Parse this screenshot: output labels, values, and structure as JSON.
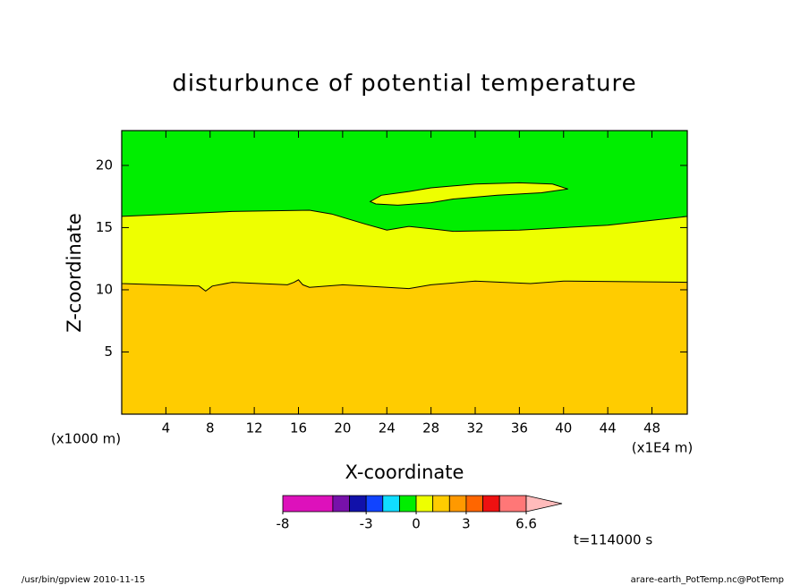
{
  "chart_data": {
    "type": "contour",
    "title": "disturbunce of potential temperature",
    "x_label": "X-coordinate",
    "y_label": "Z-coordinate",
    "x_unit": "(x1E4 m)",
    "y_unit": "(x1000 m)",
    "xlim": [
      0,
      51.2
    ],
    "ylim": [
      0,
      22.8
    ],
    "xticks": [
      4,
      8,
      12,
      16,
      20,
      24,
      28,
      32,
      36,
      40,
      44,
      48
    ],
    "yticks": [
      5,
      10,
      15,
      20
    ],
    "contours": [
      {
        "color": "#ffcc00",
        "x": [
          0,
          51.2,
          51.2,
          0
        ],
        "y": [
          0,
          0,
          22.8,
          22.8
        ]
      },
      {
        "color": "#eeff00",
        "x": [
          0,
          7,
          7.6,
          8.2,
          10,
          15,
          15.6,
          16,
          16.4,
          17,
          20,
          26,
          28,
          32,
          37,
          40,
          51.2,
          51.2,
          0
        ],
        "y": [
          10.5,
          10.3,
          9.9,
          10.3,
          10.6,
          10.4,
          10.6,
          10.8,
          10.4,
          10.2,
          10.4,
          10.1,
          10.4,
          10.7,
          10.5,
          10.7,
          10.6,
          22.8,
          22.8
        ]
      },
      {
        "color": "#00ee00",
        "x": [
          0,
          10,
          17,
          19,
          22,
          24,
          26,
          28,
          30,
          36,
          44,
          51.2,
          51.2,
          0
        ],
        "y": [
          15.9,
          16.3,
          16.4,
          16.1,
          15.3,
          14.8,
          15.1,
          14.9,
          14.7,
          14.8,
          15.2,
          15.9,
          22.8,
          22.8
        ]
      },
      {
        "color": "#eeff00",
        "x": [
          22.5,
          23.5,
          26,
          28,
          32,
          36,
          39,
          40.4,
          38,
          34,
          30,
          28,
          25,
          23
        ],
        "y": [
          17.1,
          17.6,
          17.9,
          18.2,
          18.5,
          18.6,
          18.5,
          18.1,
          17.8,
          17.6,
          17.3,
          17,
          16.8,
          16.9
        ]
      }
    ],
    "colorbar": {
      "bounds": [
        -8,
        -5,
        -4,
        -3,
        -2,
        -1,
        0,
        1,
        2,
        3,
        4,
        5,
        6.6
      ],
      "colors": [
        "#dd11bb",
        "#7711aa",
        "#1111aa",
        "#1144ff",
        "#11ddff",
        "#00ee00",
        "#eeff00",
        "#ffcc00",
        "#ff9900",
        "#ff6600",
        "#ee1111",
        "#ff7777"
      ],
      "extend_color": "#ffbbbb",
      "ticks": [
        -8,
        -3,
        0,
        3,
        6.6
      ]
    },
    "time_label": "t=114000 s",
    "footer_left": "/usr/bin/gpview  2010-11-15",
    "footer_right": "arare-earth_PotTemp.nc@PotTemp"
  }
}
